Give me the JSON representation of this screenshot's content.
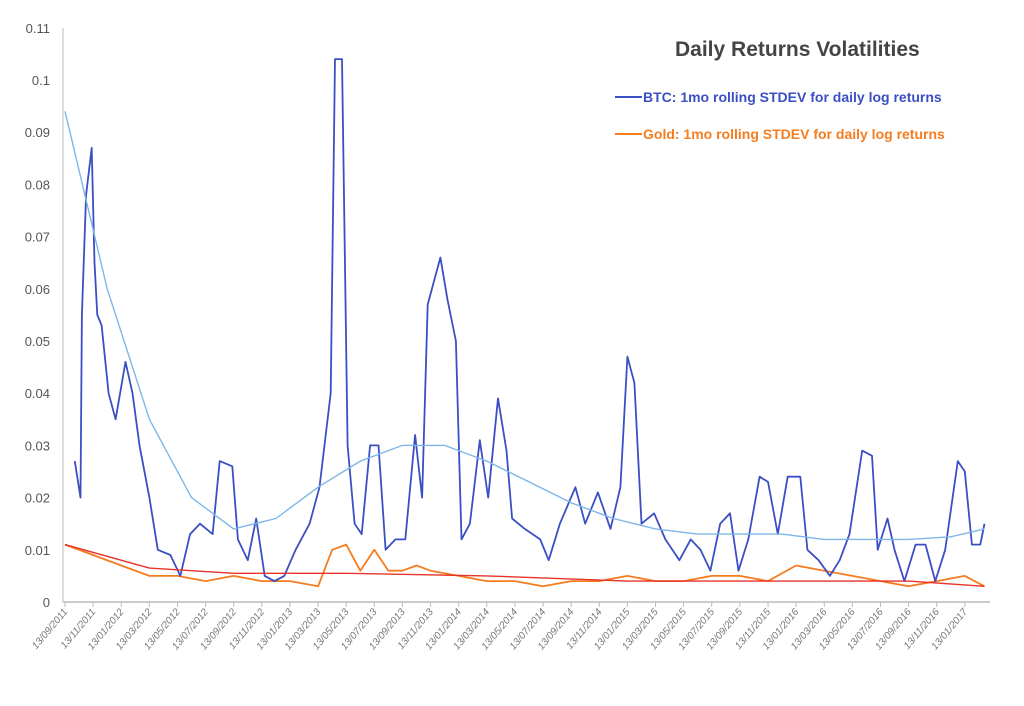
{
  "chart_data": {
    "type": "line",
    "title": "Daily Returns Volatilities",
    "xlabel": "",
    "ylabel": "",
    "x_units": "months since 13/09/2011",
    "ylim": [
      0,
      0.11
    ],
    "xlim": [
      0,
      65.5
    ],
    "yticks": [
      "0",
      "0.01",
      "0.02",
      "0.03",
      "0.04",
      "0.05",
      "0.06",
      "0.07",
      "0.08",
      "0.09",
      "0.1",
      "0.11"
    ],
    "xticks": [
      "13/09/2011",
      "13/11/2011",
      "13/01/2012",
      "13/03/2012",
      "13/05/2012",
      "13/07/2012",
      "13/09/2012",
      "13/11/2012",
      "13/01/2013",
      "13/03/2013",
      "13/05/2013",
      "13/07/2013",
      "13/09/2013",
      "13/11/2013",
      "13/01/2014",
      "13/03/2014",
      "13/05/2014",
      "13/07/2014",
      "13/09/2014",
      "13/11/2014",
      "13/01/2015",
      "13/03/2015",
      "13/05/2015",
      "13/07/2015",
      "13/09/2015",
      "13/11/2015",
      "13/01/2016",
      "13/03/2016",
      "13/05/2016",
      "13/07/2016",
      "13/09/2016",
      "13/11/2016",
      "13/01/2017"
    ],
    "grid": false,
    "legend_position": "top-right",
    "series": [
      {
        "name": "BTC: 1mo rolling STDEV for daily log returns",
        "color": "#3b4fc4",
        "x": [
          0.7,
          1.1,
          1.2,
          1.5,
          1.9,
          2.1,
          2.3,
          2.6,
          3.1,
          3.6,
          4.3,
          4.8,
          5.3,
          6.0,
          6.6,
          7.5,
          8.2,
          8.9,
          9.6,
          10.5,
          11.0,
          11.9,
          12.3,
          13.0,
          13.6,
          14.2,
          14.9,
          15.6,
          16.4,
          17.4,
          18.1,
          18.9,
          19.2,
          19.7,
          20.1,
          20.6,
          21.1,
          21.7,
          22.3,
          22.8,
          23.5,
          24.2,
          24.9,
          25.4,
          25.8,
          26.7,
          27.2,
          27.8,
          28.2,
          28.8,
          29.5,
          30.1,
          30.8,
          31.4,
          31.8,
          32.7,
          33.8,
          34.4,
          35.2,
          36.3,
          37.0,
          37.9,
          38.8,
          39.5,
          40.0,
          40.5,
          41.0,
          41.9,
          42.7,
          43.7,
          44.5,
          45.2,
          45.9,
          46.6,
          47.3,
          47.9,
          48.6,
          49.4,
          50.0,
          50.7,
          51.4,
          52.3,
          52.8,
          53.6,
          54.4,
          55.1,
          55.8,
          56.7,
          57.4,
          57.8,
          58.5,
          59.0,
          59.7,
          60.5,
          61.2,
          61.9,
          62.6,
          63.5,
          64.0,
          64.5,
          65.1,
          65.4
        ],
        "y": [
          0.027,
          0.02,
          0.055,
          0.078,
          0.087,
          0.065,
          0.055,
          0.053,
          0.04,
          0.035,
          0.046,
          0.04,
          0.03,
          0.02,
          0.01,
          0.009,
          0.005,
          0.013,
          0.015,
          0.013,
          0.027,
          0.026,
          0.012,
          0.008,
          0.016,
          0.005,
          0.004,
          0.005,
          0.01,
          0.015,
          0.022,
          0.04,
          0.104,
          0.104,
          0.03,
          0.015,
          0.013,
          0.03,
          0.03,
          0.01,
          0.012,
          0.012,
          0.032,
          0.02,
          0.057,
          0.066,
          0.058,
          0.05,
          0.012,
          0.015,
          0.031,
          0.02,
          0.039,
          0.029,
          0.016,
          0.014,
          0.012,
          0.008,
          0.015,
          0.022,
          0.015,
          0.021,
          0.014,
          0.022,
          0.047,
          0.042,
          0.015,
          0.017,
          0.012,
          0.008,
          0.012,
          0.01,
          0.006,
          0.015,
          0.017,
          0.006,
          0.012,
          0.024,
          0.023,
          0.013,
          0.024,
          0.024,
          0.01,
          0.008,
          0.005,
          0.008,
          0.013,
          0.029,
          0.028,
          0.01,
          0.016,
          0.01,
          0.004,
          0.011,
          0.011,
          0.004,
          0.01,
          0.027,
          0.025,
          0.011,
          0.011,
          0.015
        ]
      },
      {
        "name": "Gold: 1mo rolling STDEV for daily log returns",
        "color": "#f57c1f",
        "x": [
          0,
          2,
          4,
          6,
          8,
          10,
          12,
          14,
          16,
          18,
          19,
          20,
          21,
          22,
          23,
          24,
          25,
          26,
          28,
          30,
          32,
          34,
          36,
          38,
          40,
          42,
          44,
          46,
          48,
          50,
          52,
          54,
          56,
          58,
          60,
          62,
          64,
          65.4
        ],
        "y": [
          0.011,
          0.009,
          0.007,
          0.005,
          0.005,
          0.004,
          0.005,
          0.004,
          0.004,
          0.003,
          0.01,
          0.011,
          0.006,
          0.01,
          0.006,
          0.006,
          0.007,
          0.006,
          0.005,
          0.004,
          0.004,
          0.003,
          0.004,
          0.004,
          0.005,
          0.004,
          0.004,
          0.005,
          0.005,
          0.004,
          0.007,
          0.006,
          0.005,
          0.004,
          0.003,
          0.004,
          0.005,
          0.003
        ]
      },
      {
        "name": "BTC trend",
        "color": "#7fb6e8",
        "legend": false,
        "x": [
          0,
          3,
          6,
          9,
          12,
          15,
          18,
          21,
          24,
          27,
          30,
          33,
          36,
          39,
          42,
          45,
          48,
          51,
          54,
          57,
          60,
          63,
          65.4
        ],
        "y": [
          0.094,
          0.06,
          0.035,
          0.02,
          0.014,
          0.016,
          0.022,
          0.027,
          0.03,
          0.03,
          0.027,
          0.023,
          0.019,
          0.016,
          0.014,
          0.013,
          0.013,
          0.013,
          0.012,
          0.012,
          0.012,
          0.0125,
          0.014
        ]
      },
      {
        "name": "Gold trend",
        "color": "#e8322a",
        "legend": false,
        "x": [
          0,
          6,
          12,
          20,
          30,
          40,
          50,
          60,
          65.4
        ],
        "y": [
          0.011,
          0.0065,
          0.0055,
          0.0055,
          0.005,
          0.004,
          0.004,
          0.004,
          0.003
        ]
      }
    ]
  }
}
